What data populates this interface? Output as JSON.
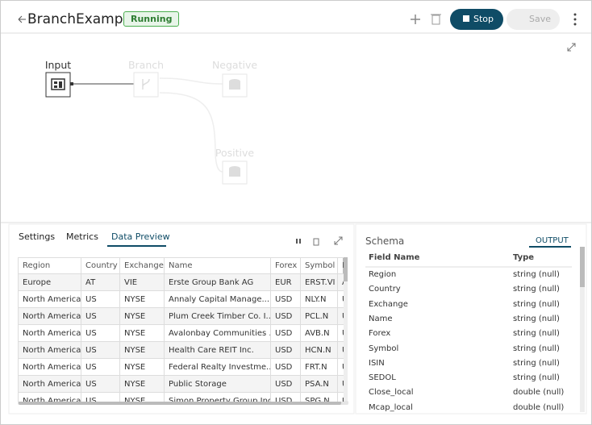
{
  "header": {
    "title": "BranchExample",
    "status": "Running",
    "stop": "Stop",
    "save": "Save"
  },
  "canvas": {
    "nodes": [
      {
        "label": "Input"
      },
      {
        "label": "Branch"
      },
      {
        "label": "Negative"
      },
      {
        "label": "Positive"
      }
    ]
  },
  "tabs": [
    "Settings",
    "Metrics",
    "Data Preview"
  ],
  "table": {
    "columns": [
      "Region",
      "Country",
      "Exchange",
      "Name",
      "Forex",
      "Symbol",
      "I"
    ],
    "rows": [
      [
        "Europe",
        "AT",
        "VIE",
        "Erste Group Bank AG",
        "EUR",
        "ERST.VI",
        "A"
      ],
      [
        "North America",
        "US",
        "NYSE",
        "Annaly Capital Manage...",
        "USD",
        "NLY.N",
        "U"
      ],
      [
        "North America",
        "US",
        "NYSE",
        "Plum Creek Timber Co. I...",
        "USD",
        "PCL.N",
        "U"
      ],
      [
        "North America",
        "US",
        "NYSE",
        "Avalonbay Communities ...",
        "USD",
        "AVB.N",
        "U"
      ],
      [
        "North America",
        "US",
        "NYSE",
        "Health Care REIT Inc.",
        "USD",
        "HCN.N",
        "U"
      ],
      [
        "North America",
        "US",
        "NYSE",
        "Federal Realty Investme...",
        "USD",
        "FRT.N",
        "U"
      ],
      [
        "North America",
        "US",
        "NYSE",
        "Public Storage",
        "USD",
        "PSA.N",
        "U"
      ],
      [
        "North America",
        "US",
        "NYSE",
        "Simon Property Group Inc.",
        "USD",
        "SPG.N",
        "U"
      ]
    ]
  },
  "schema": {
    "title": "Schema",
    "tab": "OUTPUT",
    "columns": [
      "Field Name",
      "Type"
    ],
    "rows": [
      [
        "Region",
        "string (null)"
      ],
      [
        "Country",
        "string (null)"
      ],
      [
        "Exchange",
        "string (null)"
      ],
      [
        "Name",
        "string (null)"
      ],
      [
        "Forex",
        "string (null)"
      ],
      [
        "Symbol",
        "string (null)"
      ],
      [
        "ISIN",
        "string (null)"
      ],
      [
        "SEDOL",
        "string (null)"
      ],
      [
        "Close_local",
        "double (null)"
      ],
      [
        "Mcap_local",
        "double (null)"
      ]
    ]
  }
}
